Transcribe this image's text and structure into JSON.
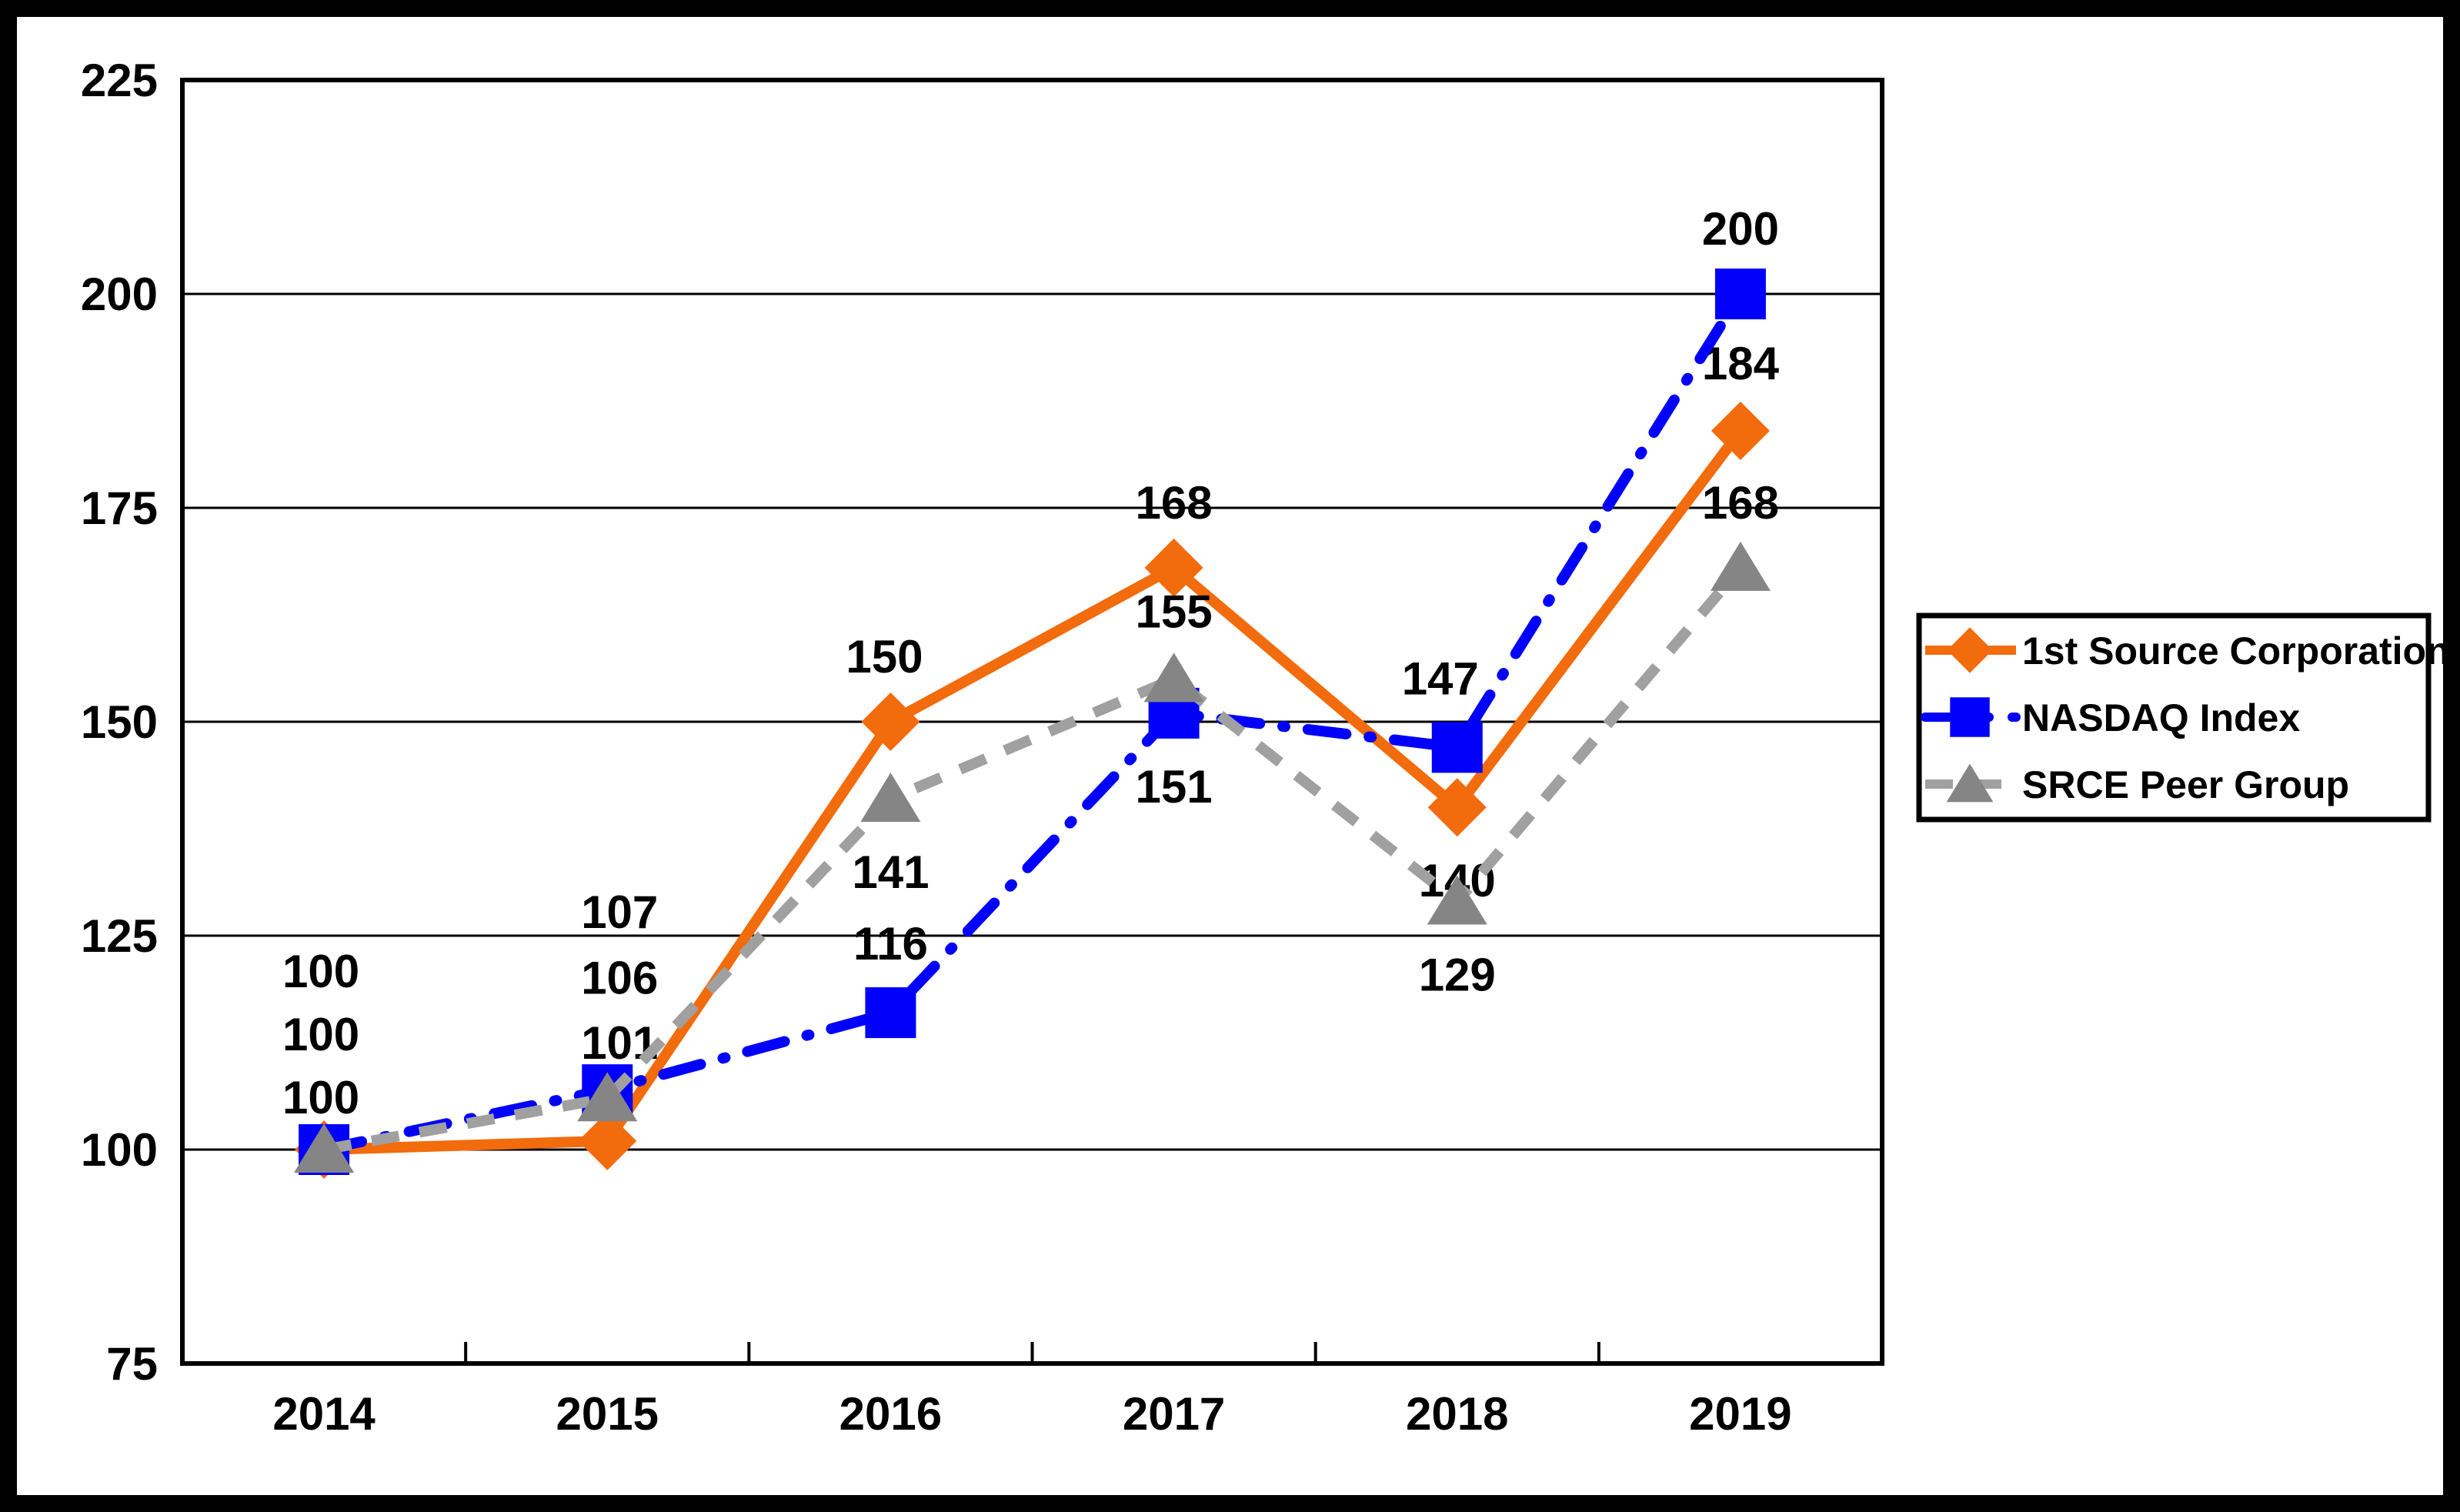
{
  "chart_data": {
    "type": "line",
    "title": "",
    "xlabel": "",
    "ylabel": "",
    "categories": [
      "2014",
      "2015",
      "2016",
      "2017",
      "2018",
      "2019"
    ],
    "y_axis": {
      "min": 75,
      "max": 225,
      "step": 25,
      "tick_labels": [
        "75",
        "100",
        "125",
        "150",
        "175",
        "200",
        "225"
      ]
    },
    "grid": true,
    "plot_border": true,
    "legend_position": "right",
    "series": [
      {
        "name": "1st Source Corporation",
        "marker": "diamond",
        "line_style": "solid",
        "line_color": "#F26B0C",
        "marker_color": "#F26B0C",
        "values": [
          100,
          101,
          150,
          168,
          140,
          184
        ],
        "label_dx": [
          -4,
          16,
          -8,
          0,
          0,
          0
        ],
        "label_dy": [
          -68,
          -128,
          -85,
          -85,
          95,
          -88
        ]
      },
      {
        "name": "NASDAQ Index",
        "marker": "square",
        "line_style": "dash-dot",
        "line_color": "#0000FB",
        "marker_color": "#0000FB",
        "values": [
          100,
          107,
          116,
          151,
          147,
          200
        ],
        "label_dx": [
          -4,
          16,
          0,
          0,
          -22,
          0
        ],
        "label_dy": [
          -232,
          -231,
          -90,
          95,
          -90,
          -85
        ]
      },
      {
        "name": "SRCE Peer Group",
        "marker": "triangle",
        "line_style": "dashed",
        "line_color": "#A0A0A0",
        "marker_color": "#858585",
        "values": [
          100,
          106,
          141,
          155,
          129,
          168
        ],
        "label_dx": [
          -4,
          16,
          0,
          0,
          0,
          0
        ],
        "label_dy": [
          -150,
          -157,
          95,
          -88,
          95,
          -85
        ]
      }
    ]
  }
}
